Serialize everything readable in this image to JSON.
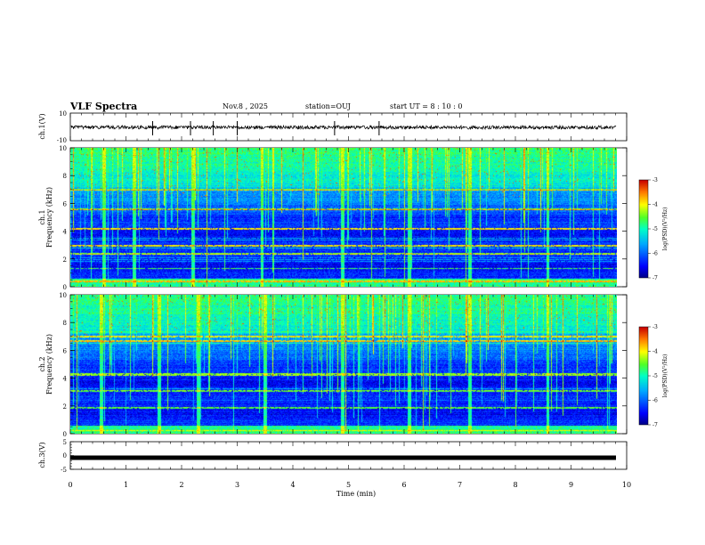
{
  "header": {
    "title": "VLF Spectra",
    "date": "Nov.8 , 2025",
    "station": "station=OUJ",
    "start_ut": "start UT = 8 : 10 : 0"
  },
  "chart_data": [
    {
      "type": "line",
      "name": "ch1-waveform",
      "ylabel": "ch.1(V)",
      "ylim": [
        -10,
        10
      ],
      "yticks": [
        "10",
        "-10"
      ],
      "xlim": [
        0,
        10
      ],
      "baseline": 0,
      "spikes_x": [
        1.48,
        2.16,
        2.57,
        3.0,
        4.75,
        5.55
      ]
    },
    {
      "type": "heatmap",
      "name": "ch1-spectrogram",
      "ylabel": "ch.1 Frequency (kHz)",
      "ylim": [
        0,
        10
      ],
      "yticks": [
        "0",
        "2",
        "4",
        "6",
        "8",
        "10"
      ],
      "xlim": [
        0,
        9.85
      ],
      "colorbar": {
        "label": "log(PSD)(V²/Hz)",
        "range": [
          -7,
          -3
        ],
        "ticks": [
          "-3",
          "-4",
          "-5",
          "-6",
          "-7"
        ]
      },
      "strong_bands_khz": [
        0.4,
        2.4,
        3.0,
        4.2,
        5.6,
        7.0
      ],
      "impulse_times_min": [
        0.6,
        1.15,
        2.2,
        3.45,
        4.9,
        6.1,
        7.2,
        8.6
      ]
    },
    {
      "type": "heatmap",
      "name": "ch2-spectrogram",
      "ylabel": "ch.2 Frequency (kHz)",
      "ylim": [
        0,
        10
      ],
      "yticks": [
        "0",
        "2",
        "4",
        "6",
        "8",
        "10"
      ],
      "xlim": [
        0,
        9.85
      ],
      "colorbar": {
        "label": "log(PSD)(V²/Hz)",
        "range": [
          -7,
          -3
        ],
        "ticks": [
          "-3",
          "-4",
          "-5",
          "-6",
          "-7"
        ]
      },
      "strong_bands_khz": [
        0.3,
        1.9,
        3.1,
        4.3,
        6.7,
        7.0
      ],
      "impulse_times_min": [
        0.55,
        1.6,
        2.3,
        3.5,
        4.9,
        6.1,
        7.2,
        8.6
      ]
    },
    {
      "type": "line",
      "name": "ch3-waveform",
      "ylabel": "ch.3(V)",
      "ylim": [
        -5,
        5
      ],
      "yticks": [
        "5",
        "0",
        "-5"
      ],
      "xlim": [
        0,
        10
      ],
      "constant_value": -0.8
    }
  ],
  "xaxis": {
    "label": "Time (min)",
    "ticks": [
      "0",
      "1",
      "2",
      "3",
      "4",
      "5",
      "6",
      "7",
      "8",
      "9",
      "10"
    ]
  }
}
